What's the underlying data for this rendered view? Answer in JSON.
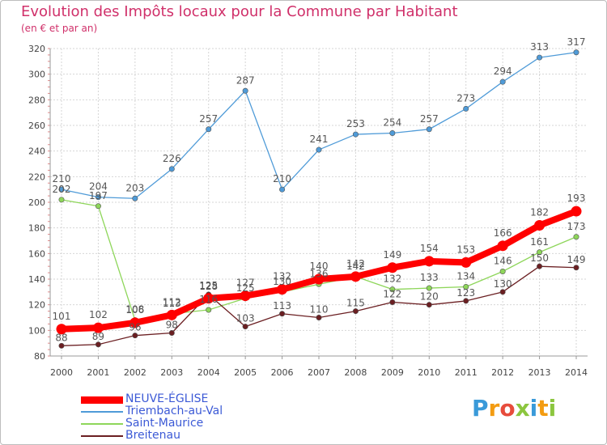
{
  "header": {
    "title": "Evolution des Impôts locaux pour la Commune par Habitant",
    "subtitle": "(en € et par an)"
  },
  "logo": {
    "text": "Proxiti",
    "colors": [
      "#3a9ad9",
      "#f39c12",
      "#e74c3c",
      "#8cc63f",
      "#3a9ad9",
      "#f39c12",
      "#8cc63f"
    ]
  },
  "chart_data": {
    "type": "line",
    "title": "Evolution des Impôts locaux pour la Commune par Habitant",
    "subtitle": "(en € et par an)",
    "xlabel": "",
    "ylabel": "",
    "categories": [
      "2000",
      "2001",
      "2002",
      "2003",
      "2004",
      "2005",
      "2006",
      "2007",
      "2008",
      "2009",
      "2010",
      "2011",
      "2012",
      "2013",
      "2014"
    ],
    "ylim": [
      80,
      320
    ],
    "yticks": [
      80,
      100,
      120,
      140,
      160,
      180,
      200,
      220,
      240,
      260,
      280,
      300,
      320
    ],
    "grid": true,
    "legend_position": "bottom-left",
    "series": [
      {
        "name": "NEUVE-ÉGLISE",
        "color": "#ff0000",
        "values": [
          101,
          102,
          106,
          112,
          125,
          127,
          132,
          140,
          142,
          149,
          154,
          153,
          166,
          182,
          193
        ]
      },
      {
        "name": "Triembach-au-Val",
        "color": "#4f9bd8",
        "values": [
          210,
          204,
          203,
          226,
          257,
          287,
          210,
          241,
          253,
          254,
          257,
          273,
          294,
          313,
          317
        ]
      },
      {
        "name": "Saint-Maurice",
        "color": "#8ed65a",
        "values": [
          202,
          197,
          108,
          113,
          116,
          125,
          130,
          136,
          142,
          132,
          133,
          134,
          146,
          161,
          173
        ]
      },
      {
        "name": "Breitenau",
        "color": "#6b1f22",
        "values": [
          88,
          89,
          96,
          98,
          128,
          103,
          113,
          110,
          115,
          122,
          120,
          123,
          130,
          150,
          149
        ]
      }
    ]
  }
}
